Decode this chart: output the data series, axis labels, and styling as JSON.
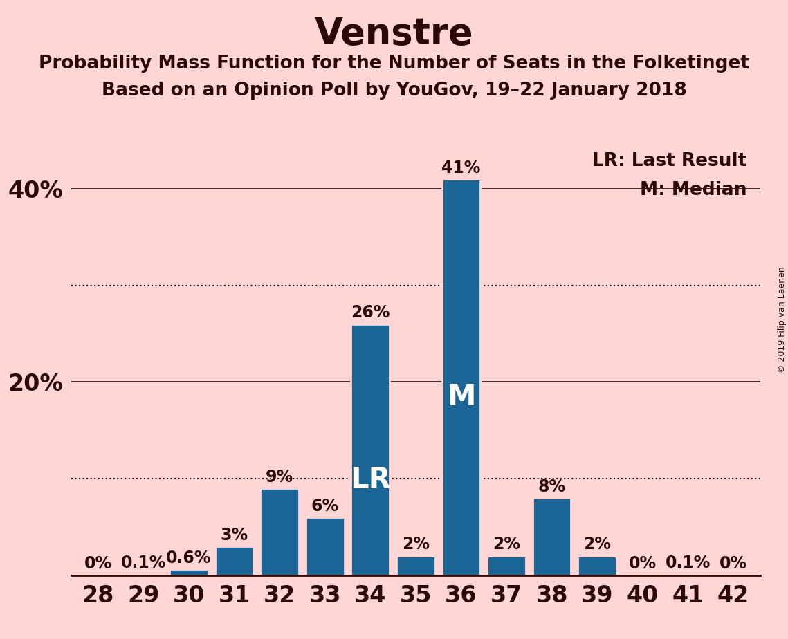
{
  "title": "Venstre",
  "subtitle1": "Probability Mass Function for the Number of Seats in the Folketinget",
  "subtitle2": "Based on an Opinion Poll by YouGov, 19–22 January 2018",
  "copyright": "© 2019 Filip van Laenen",
  "categories": [
    28,
    29,
    30,
    31,
    32,
    33,
    34,
    35,
    36,
    37,
    38,
    39,
    40,
    41,
    42
  ],
  "values": [
    0.0,
    0.1,
    0.6,
    3.0,
    9.0,
    6.0,
    26.0,
    2.0,
    41.0,
    2.0,
    8.0,
    2.0,
    0.0,
    0.1,
    0.0
  ],
  "labels": [
    "0%",
    "0.1%",
    "0.6%",
    "3%",
    "9%",
    "6%",
    "26%",
    "2%",
    "41%",
    "2%",
    "8%",
    "2%",
    "0%",
    "0.1%",
    "0%"
  ],
  "bar_color": "#1a6496",
  "background_color": "#ffd6d6",
  "bar_edge_color": "#ffd6d6",
  "text_color": "#2c0a0a",
  "solid_line_yticks": [
    20,
    40
  ],
  "solid_line_labels": [
    "20%",
    "40%"
  ],
  "dotted_line_yticks": [
    10,
    30
  ],
  "ylim": [
    0,
    45
  ],
  "legend_lr": "LR: Last Result",
  "legend_m": "M: Median",
  "lr_bar": 34,
  "median_bar": 36,
  "lr_label": "LR",
  "median_label": "M",
  "bar_label_fontsize": 17,
  "title_fontsize": 38,
  "subtitle_fontsize": 19,
  "legend_fontsize": 19,
  "ytick_fontsize": 24,
  "xtick_fontsize": 24,
  "lr_label_fontsize": 30,
  "median_label_fontsize": 30
}
